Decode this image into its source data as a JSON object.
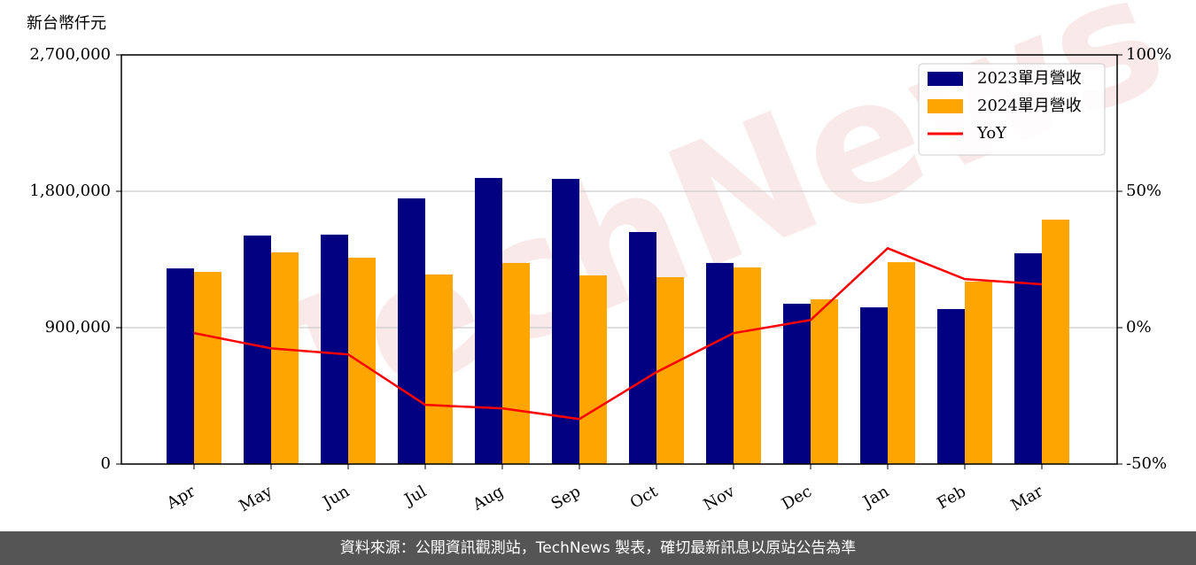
{
  "chart_data": {
    "type": "bar",
    "y_label": "新台幣仟元",
    "watermark": "TechNews",
    "footer": "資料來源：公開資訊觀測站，TechNews 製表，確切最新訊息以原站公告為準",
    "categories": [
      "Apr",
      "May",
      "Jun",
      "Jul",
      "Aug",
      "Sep",
      "Oct",
      "Nov",
      "Dec",
      "Jan",
      "Feb",
      "Mar"
    ],
    "series": [
      {
        "name": "2023單月營收",
        "type": "bar",
        "color": "#000080",
        "values": [
          1291000,
          1508000,
          1514000,
          1753000,
          1888000,
          1882000,
          1531000,
          1327000,
          1058000,
          1034000,
          1023000,
          1391000
        ]
      },
      {
        "name": "2024單月營收",
        "type": "bar",
        "color": "#ffa500",
        "values": [
          1268000,
          1397000,
          1362000,
          1251000,
          1327000,
          1245000,
          1233000,
          1297000,
          1087000,
          1332000,
          1204000,
          1613000
        ]
      },
      {
        "name": "YoY",
        "type": "line",
        "axis": "y2",
        "color": "#ff0000",
        "values": [
          -2.0,
          -7.6,
          -9.8,
          -28.3,
          -29.6,
          -33.5,
          -16.3,
          -2.0,
          2.8,
          29.1,
          17.8,
          15.9
        ]
      }
    ],
    "ylim": [
      0,
      2700000
    ],
    "yticks": [
      0,
      {
        "value": 900000,
        "label": "900,000"
      },
      {
        "value": 1800000,
        "label": "1,800,000"
      },
      {
        "value": 2700000,
        "label": "2,700,000"
      }
    ],
    "y2lim": [
      -50,
      100
    ],
    "y2ticks": [
      {
        "value": -50,
        "label": "-50%"
      },
      {
        "value": 0,
        "label": "0%"
      },
      {
        "value": 50,
        "label": "50%"
      },
      {
        "value": 100,
        "label": "100%"
      }
    ],
    "grid": true,
    "legend": "upper right"
  }
}
